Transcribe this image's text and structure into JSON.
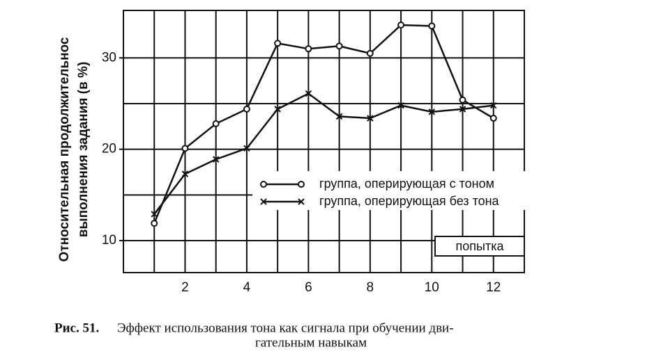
{
  "chart_data": {
    "type": "line",
    "y_label_lines": [
      "Относительная продолжительнос",
      "выполнения задания (в %)"
    ],
    "x_label": "попытка",
    "x": [
      1,
      2,
      3,
      4,
      5,
      6,
      7,
      8,
      9,
      10,
      11,
      12
    ],
    "series": [
      {
        "name": "группа, оперирующая с тоном",
        "color": "#111111",
        "marker": "circle",
        "values": [
          11.9,
          20.1,
          22.8,
          24.4,
          31.6,
          31.0,
          31.3,
          30.5,
          33.6,
          33.5,
          25.4,
          23.4
        ]
      },
      {
        "name": "группа, оперирующая без тона",
        "color": "#111111",
        "marker": "x",
        "values": [
          12.9,
          17.3,
          18.9,
          20.1,
          24.4,
          26.1,
          23.6,
          23.4,
          24.8,
          24.1,
          24.4,
          24.8
        ]
      }
    ],
    "xlim": [
      0,
      13
    ],
    "xticks": [
      2,
      4,
      6,
      8,
      10,
      12
    ],
    "minor_xticks": [
      1,
      3,
      5,
      7,
      9,
      11
    ],
    "ylim": [
      6.5,
      35.2
    ],
    "yticks": [
      10,
      20,
      30
    ],
    "minor_yticks": [
      15,
      25
    ],
    "grid": true,
    "caption": {
      "label": "Рис. 51.",
      "lines": [
        "Эффект использования тона как сигнала при обучении дви-",
        "гательным навыкам"
      ]
    }
  }
}
